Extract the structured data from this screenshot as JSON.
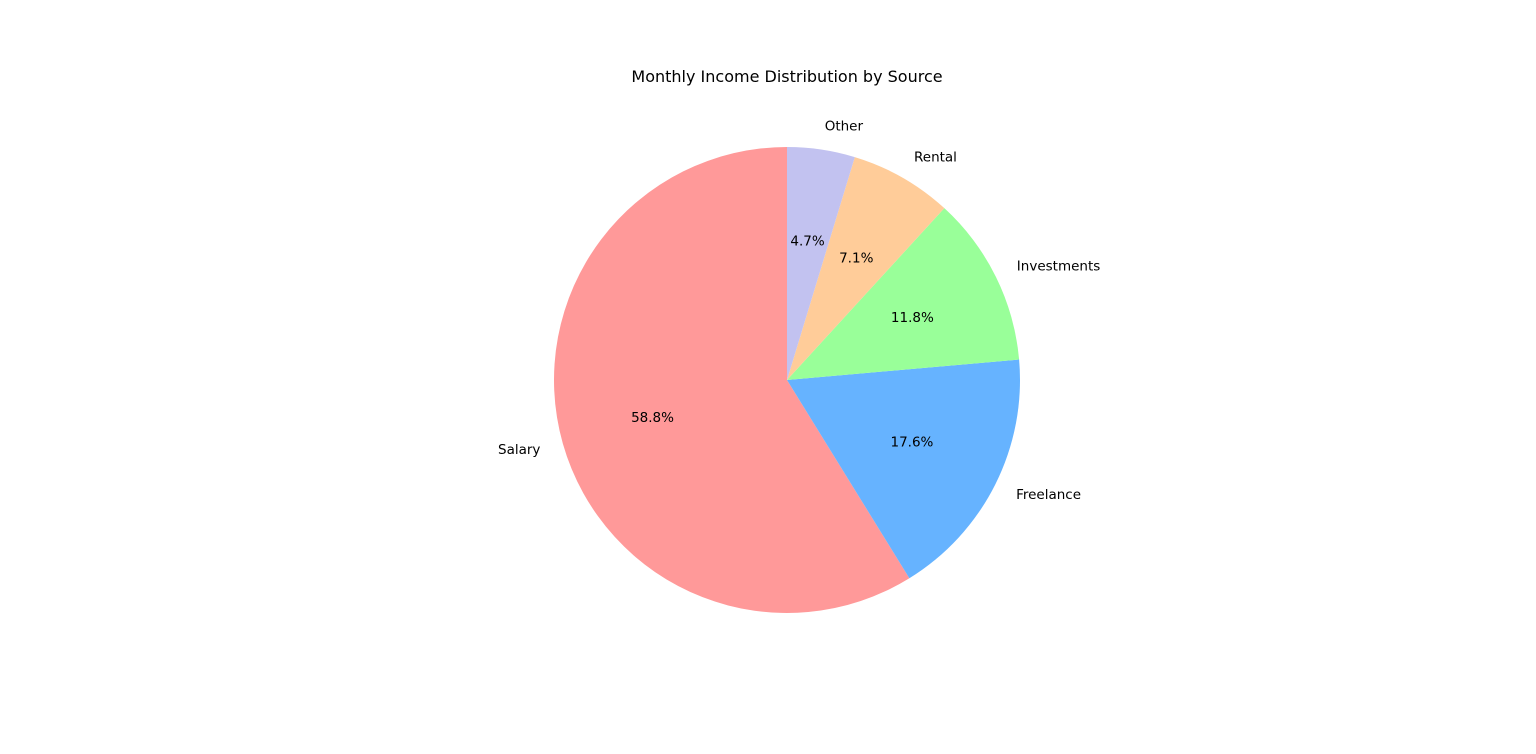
{
  "chart_data": {
    "type": "pie",
    "title": "Monthly Income Distribution by Source",
    "categories": [
      "Salary",
      "Freelance",
      "Investments",
      "Rental",
      "Other"
    ],
    "values": [
      58.8,
      17.6,
      11.8,
      7.1,
      4.7
    ],
    "value_labels": [
      "58.8%",
      "17.6%",
      "11.8%",
      "7.1%",
      "4.7%"
    ],
    "colors": [
      "#ff9999",
      "#66b3ff",
      "#99ff99",
      "#ffcc99",
      "#c2c2f0"
    ],
    "start_angle_deg": 90,
    "direction": "counterclockwise",
    "legend": "none"
  }
}
